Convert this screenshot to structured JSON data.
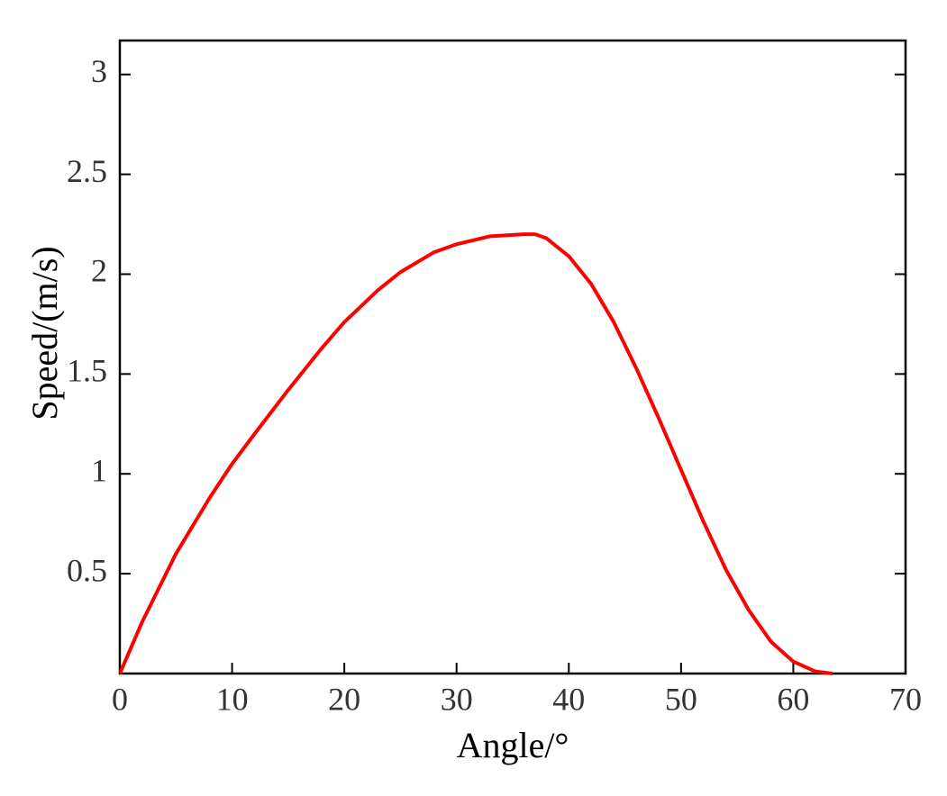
{
  "chart_data": {
    "type": "line",
    "xlabel": "Angle/°",
    "ylabel": "Speed/(m/s)",
    "x": [
      0,
      2,
      5,
      8,
      10,
      12,
      15,
      18,
      20,
      23,
      25,
      28,
      30,
      33,
      36,
      37,
      38,
      40,
      42,
      44,
      46,
      48,
      50,
      52,
      54,
      56,
      58,
      60,
      62,
      63.5
    ],
    "series": [
      {
        "color": "#ff0000",
        "values": [
          0,
          0.26,
          0.6,
          0.88,
          1.05,
          1.2,
          1.42,
          1.63,
          1.76,
          1.92,
          2.01,
          2.11,
          2.15,
          2.19,
          2.2,
          2.2,
          2.18,
          2.09,
          1.95,
          1.76,
          1.53,
          1.28,
          1.02,
          0.76,
          0.52,
          0.32,
          0.16,
          0.06,
          0.01,
          0
        ]
      }
    ],
    "xlim": [
      0,
      70
    ],
    "xticks": [
      0,
      10,
      20,
      30,
      40,
      50,
      60,
      70
    ],
    "ylim": [
      0,
      3.17
    ],
    "yticks": [
      0.5,
      1,
      1.5,
      2,
      2.5,
      3
    ]
  }
}
